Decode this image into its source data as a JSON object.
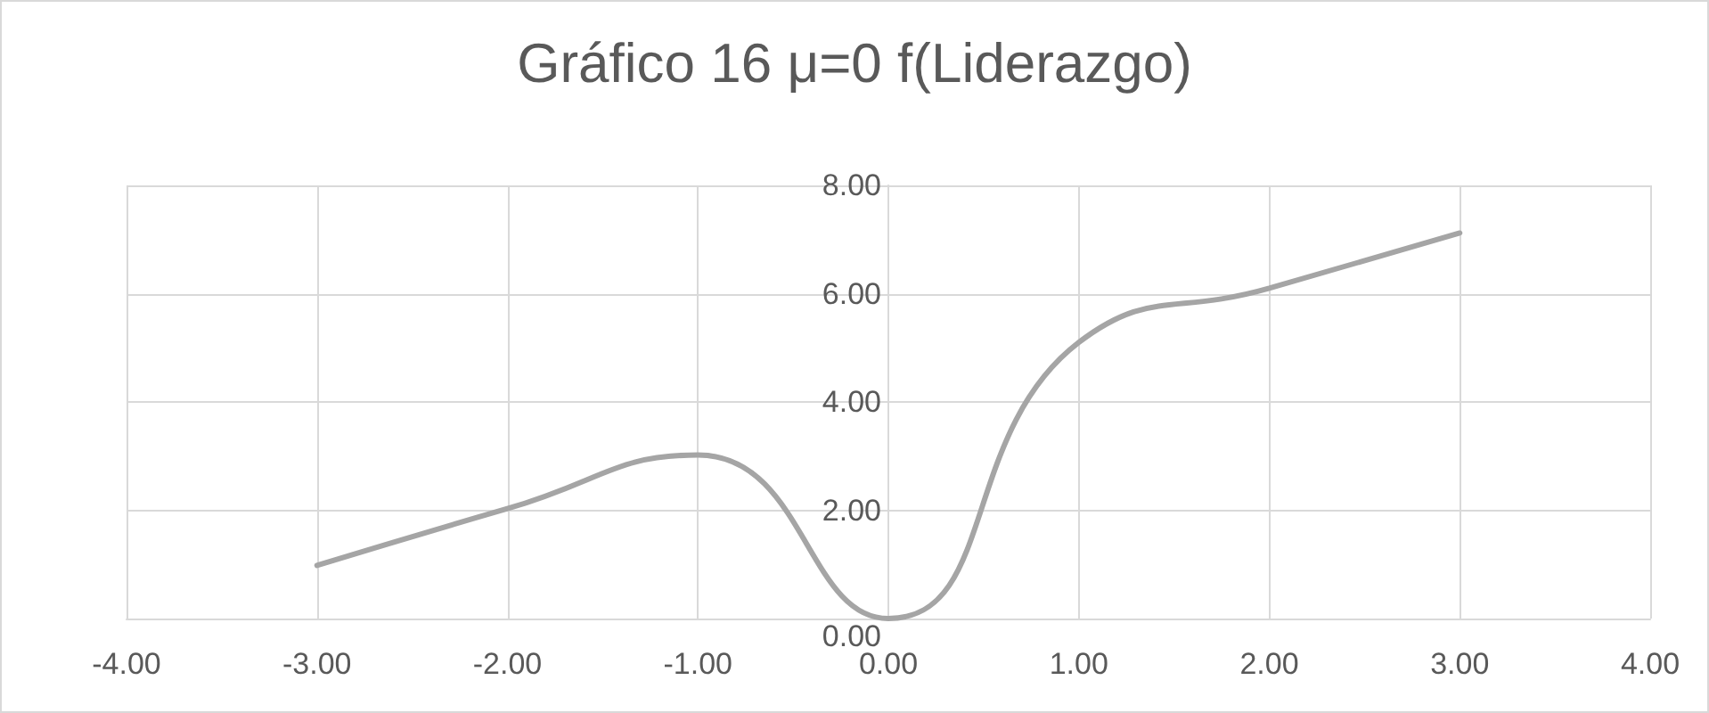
{
  "chart_data": {
    "type": "line",
    "title": "Gráfico 16 μ=0 f(Liderazgo)",
    "x": [
      -3,
      -2,
      -1,
      0,
      1,
      2,
      3
    ],
    "series": [
      {
        "color": "#a5a5a5",
        "values": [
          0.98,
          2.03,
          3.02,
          0.0,
          5.1,
          6.1,
          7.12
        ]
      }
    ],
    "xlim": [
      -4,
      4
    ],
    "xticks": [
      {
        "value": -4,
        "label": "-4.00"
      },
      {
        "value": -3,
        "label": "-3.00"
      },
      {
        "value": -2,
        "label": "-2.00"
      },
      {
        "value": -1,
        "label": "-1.00"
      },
      {
        "value": 0,
        "label": "0.00"
      },
      {
        "value": 1,
        "label": "1.00"
      },
      {
        "value": 2,
        "label": "2.00"
      },
      {
        "value": 3,
        "label": "3.00"
      },
      {
        "value": 4,
        "label": "4.00"
      }
    ],
    "ylim": [
      0,
      8
    ],
    "yticks": [
      {
        "value": 0,
        "label": "0.00"
      },
      {
        "value": 2,
        "label": "2.00"
      },
      {
        "value": 4,
        "label": "4.00"
      },
      {
        "value": 6,
        "label": "6.00"
      },
      {
        "value": 8,
        "label": "8.00"
      }
    ],
    "grid": true,
    "marker": "none",
    "line_style": "solid"
  }
}
